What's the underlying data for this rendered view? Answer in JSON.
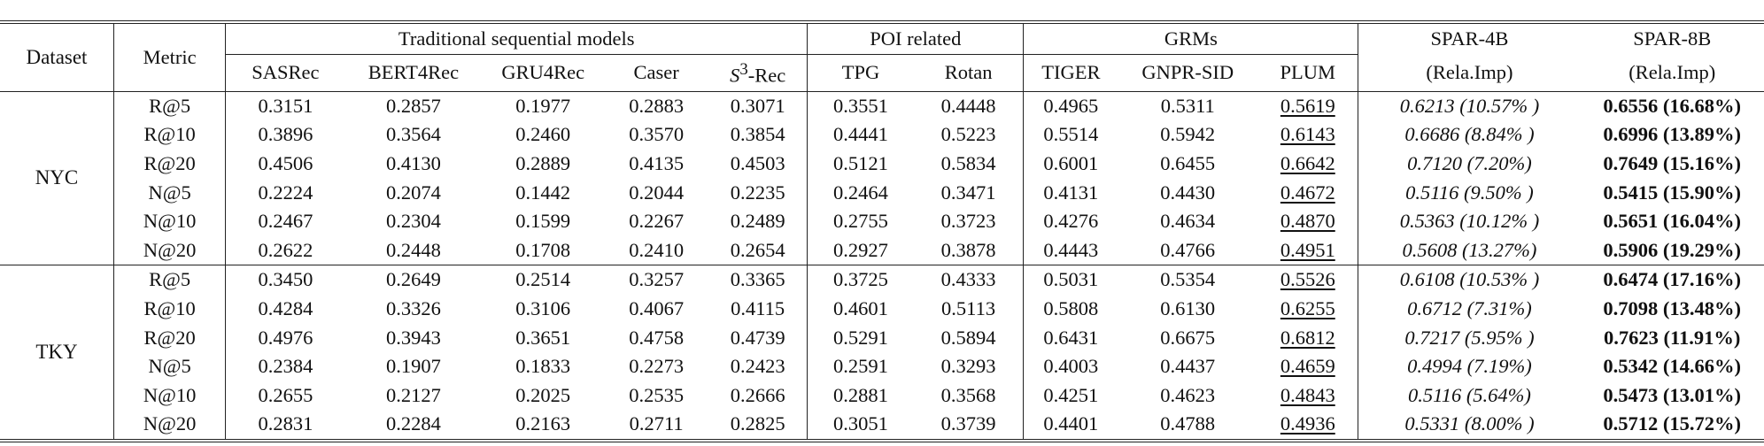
{
  "group_headers": {
    "dataset": "Dataset",
    "metric": "Metric",
    "traditional": "Traditional sequential models",
    "poi": "POI related",
    "grms": "GRMs",
    "spar4b": "SPAR-4B",
    "spar8b": "SPAR-8B"
  },
  "model_headers": {
    "sasrec": "SASRec",
    "bert4rec": "BERT4Rec",
    "gru4rec": "GRU4Rec",
    "caser": "Caser",
    "s3rec_base": "S",
    "s3rec_sup": "3",
    "s3rec_suffix": "-Rec",
    "tpg": "TPG",
    "rotan": "Rotan",
    "tiger": "TIGER",
    "gnprsid": "GNPR-SID",
    "plum": "PLUM",
    "spar4b_sub": "(Rela.Imp)",
    "spar8b_sub": "(Rela.Imp)"
  },
  "datasets": [
    {
      "name": "NYC",
      "rows": [
        {
          "metric": "R@5",
          "values": [
            "0.3151",
            "0.2857",
            "0.1977",
            "0.2883",
            "0.3071",
            "0.3551",
            "0.4448",
            "0.4965",
            "0.5311",
            "0.5619"
          ],
          "spar4b": "0.6213 (10.57% )",
          "spar8b": "0.6556 (16.68%)"
        },
        {
          "metric": "R@10",
          "values": [
            "0.3896",
            "0.3564",
            "0.2460",
            "0.3570",
            "0.3854",
            "0.4441",
            "0.5223",
            "0.5514",
            "0.5942",
            "0.6143"
          ],
          "spar4b": "0.6686 (8.84% )",
          "spar8b": "0.6996 (13.89%)"
        },
        {
          "metric": "R@20",
          "values": [
            "0.4506",
            "0.4130",
            "0.2889",
            "0.4135",
            "0.4503",
            "0.5121",
            "0.5834",
            "0.6001",
            "0.6455",
            "0.6642"
          ],
          "spar4b": "0.7120 (7.20%)",
          "spar8b": "0.7649 (15.16%)"
        },
        {
          "metric": "N@5",
          "values": [
            "0.2224",
            "0.2074",
            "0.1442",
            "0.2044",
            "0.2235",
            "0.2464",
            "0.3471",
            "0.4131",
            "0.4430",
            "0.4672"
          ],
          "spar4b": "0.5116 (9.50% )",
          "spar8b": "0.5415 (15.90%)"
        },
        {
          "metric": "N@10",
          "values": [
            "0.2467",
            "0.2304",
            "0.1599",
            "0.2267",
            "0.2489",
            "0.2755",
            "0.3723",
            "0.4276",
            "0.4634",
            "0.4870"
          ],
          "spar4b": "0.5363 (10.12% )",
          "spar8b": "0.5651 (16.04%)"
        },
        {
          "metric": "N@20",
          "values": [
            "0.2622",
            "0.2448",
            "0.1708",
            "0.2410",
            "0.2654",
            "0.2927",
            "0.3878",
            "0.4443",
            "0.4766",
            "0.4951"
          ],
          "spar4b": "0.5608 (13.27%)",
          "spar8b": "0.5906 (19.29%)"
        }
      ]
    },
    {
      "name": "TKY",
      "rows": [
        {
          "metric": "R@5",
          "values": [
            "0.3450",
            "0.2649",
            "0.2514",
            "0.3257",
            "0.3365",
            "0.3725",
            "0.4333",
            "0.5031",
            "0.5354",
            "0.5526"
          ],
          "spar4b": "0.6108 (10.53% )",
          "spar8b": "0.6474 (17.16%)"
        },
        {
          "metric": "R@10",
          "values": [
            "0.4284",
            "0.3326",
            "0.3106",
            "0.4067",
            "0.4115",
            "0.4601",
            "0.5113",
            "0.5808",
            "0.6130",
            "0.6255"
          ],
          "spar4b": "0.6712 (7.31%)",
          "spar8b": "0.7098 (13.48%)"
        },
        {
          "metric": "R@20",
          "values": [
            "0.4976",
            "0.3943",
            "0.3651",
            "0.4758",
            "0.4739",
            "0.5291",
            "0.5894",
            "0.6431",
            "0.6675",
            "0.6812"
          ],
          "spar4b": "0.7217 (5.95% )",
          "spar8b": "0.7623 (11.91%)"
        },
        {
          "metric": "N@5",
          "values": [
            "0.2384",
            "0.1907",
            "0.1833",
            "0.2273",
            "0.2423",
            "0.2591",
            "0.3293",
            "0.4003",
            "0.4437",
            "0.4659"
          ],
          "spar4b": "0.4994 (7.19%)",
          "spar8b": "0.5342 (14.66%)"
        },
        {
          "metric": "N@10",
          "values": [
            "0.2655",
            "0.2127",
            "0.2025",
            "0.2535",
            "0.2666",
            "0.2881",
            "0.3568",
            "0.4251",
            "0.4623",
            "0.4843"
          ],
          "spar4b": "0.5116 (5.64%)",
          "spar8b": "0.5473 (13.01%)"
        },
        {
          "metric": "N@20",
          "values": [
            "0.2831",
            "0.2284",
            "0.2163",
            "0.2711",
            "0.2825",
            "0.3051",
            "0.3739",
            "0.4401",
            "0.4788",
            "0.4936"
          ],
          "spar4b": "0.5331 (8.00% )",
          "spar8b": "0.5712 (15.72%)"
        }
      ]
    }
  ]
}
